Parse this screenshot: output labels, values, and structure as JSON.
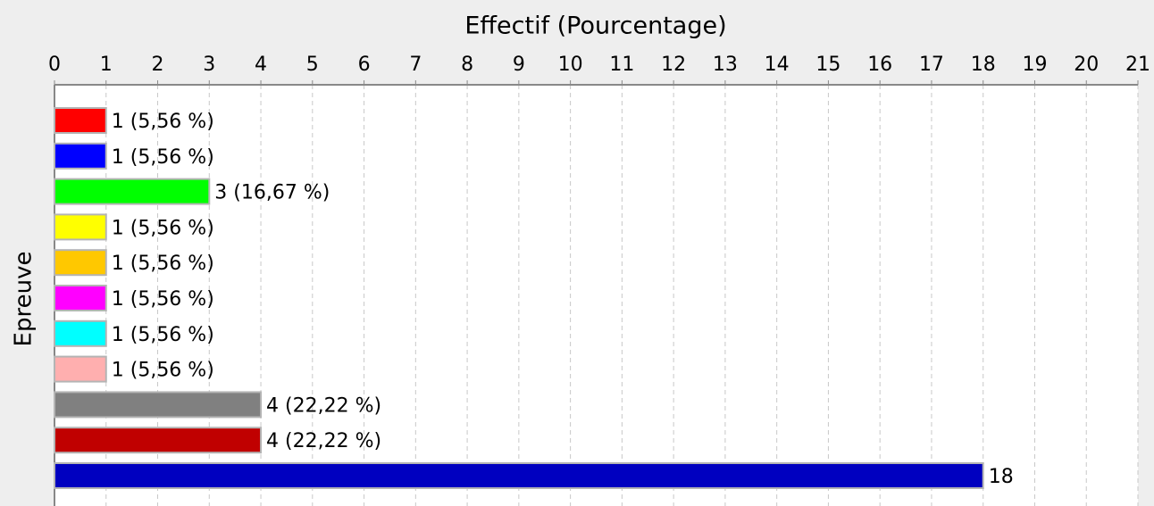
{
  "chart_data": {
    "type": "bar",
    "orientation": "horizontal",
    "title": "Effectif (Pourcentage)",
    "y_label": "Epreuve",
    "categories": [
      null,
      null,
      null,
      null,
      null,
      null,
      null,
      null,
      null,
      null,
      null
    ],
    "values": [
      1,
      1,
      3,
      1,
      1,
      1,
      1,
      1,
      4,
      4,
      18
    ],
    "value_labels": [
      "1 (5,56 %)",
      "1 (5,56 %)",
      "3 (16,67 %)",
      "1 (5,56 %)",
      "1 (5,56 %)",
      "1 (5,56 %)",
      "1 (5,56 %)",
      "1 (5,56 %)",
      "4 (22,22 %)",
      "4 (22,22 %)",
      "18"
    ],
    "colors": [
      "#ff0000",
      "#0000ff",
      "#00ff00",
      "#ffff00",
      "#ffc800",
      "#ff00ff",
      "#00ffff",
      "#ffafaf",
      "#808080",
      "#c00000",
      "#0000c0"
    ],
    "xlim": [
      0,
      21
    ],
    "xticks": [
      0,
      1,
      2,
      3,
      4,
      5,
      6,
      7,
      8,
      9,
      10,
      11,
      12,
      13,
      14,
      15,
      16,
      17,
      18,
      19,
      20,
      21
    ],
    "grid": true
  }
}
